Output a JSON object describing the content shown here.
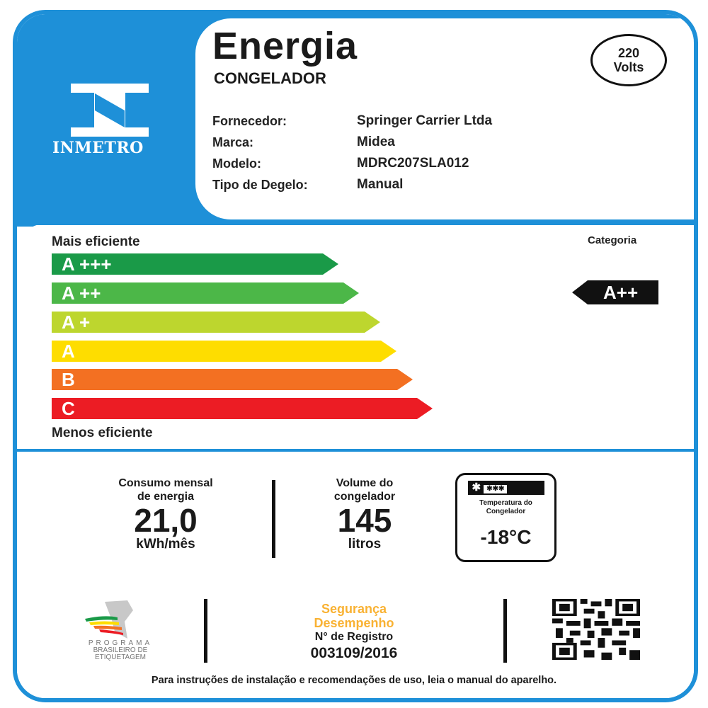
{
  "header": {
    "logo": "INMETRO",
    "title": "Energia",
    "subtitle": "CONGELADOR",
    "voltage_value": "220",
    "voltage_unit": "Volts",
    "fields": [
      {
        "label": "Fornecedor:",
        "value": "Springer Carrier Ltda"
      },
      {
        "label": "Marca:",
        "value": "Midea"
      },
      {
        "label": "Modelo:",
        "value": "MDRC207SLA012"
      },
      {
        "label": "Tipo de Degelo:",
        "value": "Manual"
      }
    ]
  },
  "scale": {
    "top_label": "Mais eficiente",
    "bottom_label": "Menos eficiente",
    "category_label": "Categoria",
    "category_value": "A++",
    "classes": [
      {
        "label": "A +++",
        "color": "#1a9a48"
      },
      {
        "label": "A ++",
        "color": "#4cb748"
      },
      {
        "label": "A +",
        "color": "#bdd62e"
      },
      {
        "label": "A",
        "color": "#fedd00"
      },
      {
        "label": "B",
        "color": "#f37022"
      },
      {
        "label": "C",
        "color": "#ec1c24"
      }
    ]
  },
  "specs": {
    "consumption_label_1": "Consumo mensal",
    "consumption_label_2": "de energia",
    "consumption_value": "21,0",
    "consumption_unit": "kWh/mês",
    "volume_label_1": "Volume do",
    "volume_label_2": "congelador",
    "volume_value": "145",
    "volume_unit": "litros",
    "temp_label_1": "Temperatura do",
    "temp_label_2": "Congelador",
    "temp_value": "-18°C"
  },
  "footer": {
    "program_1": "PROGRAMA",
    "program_2": "BRASILEIRO DE",
    "program_3": "ETIQUETAGEM",
    "seal_1": "Segurança",
    "seal_2": "Desempenho",
    "registro_label": "N° de Registro",
    "registro_value": "003109/2016",
    "note": "Para instruções de instalação e recomendações de uso, leia o manual do aparelho."
  }
}
